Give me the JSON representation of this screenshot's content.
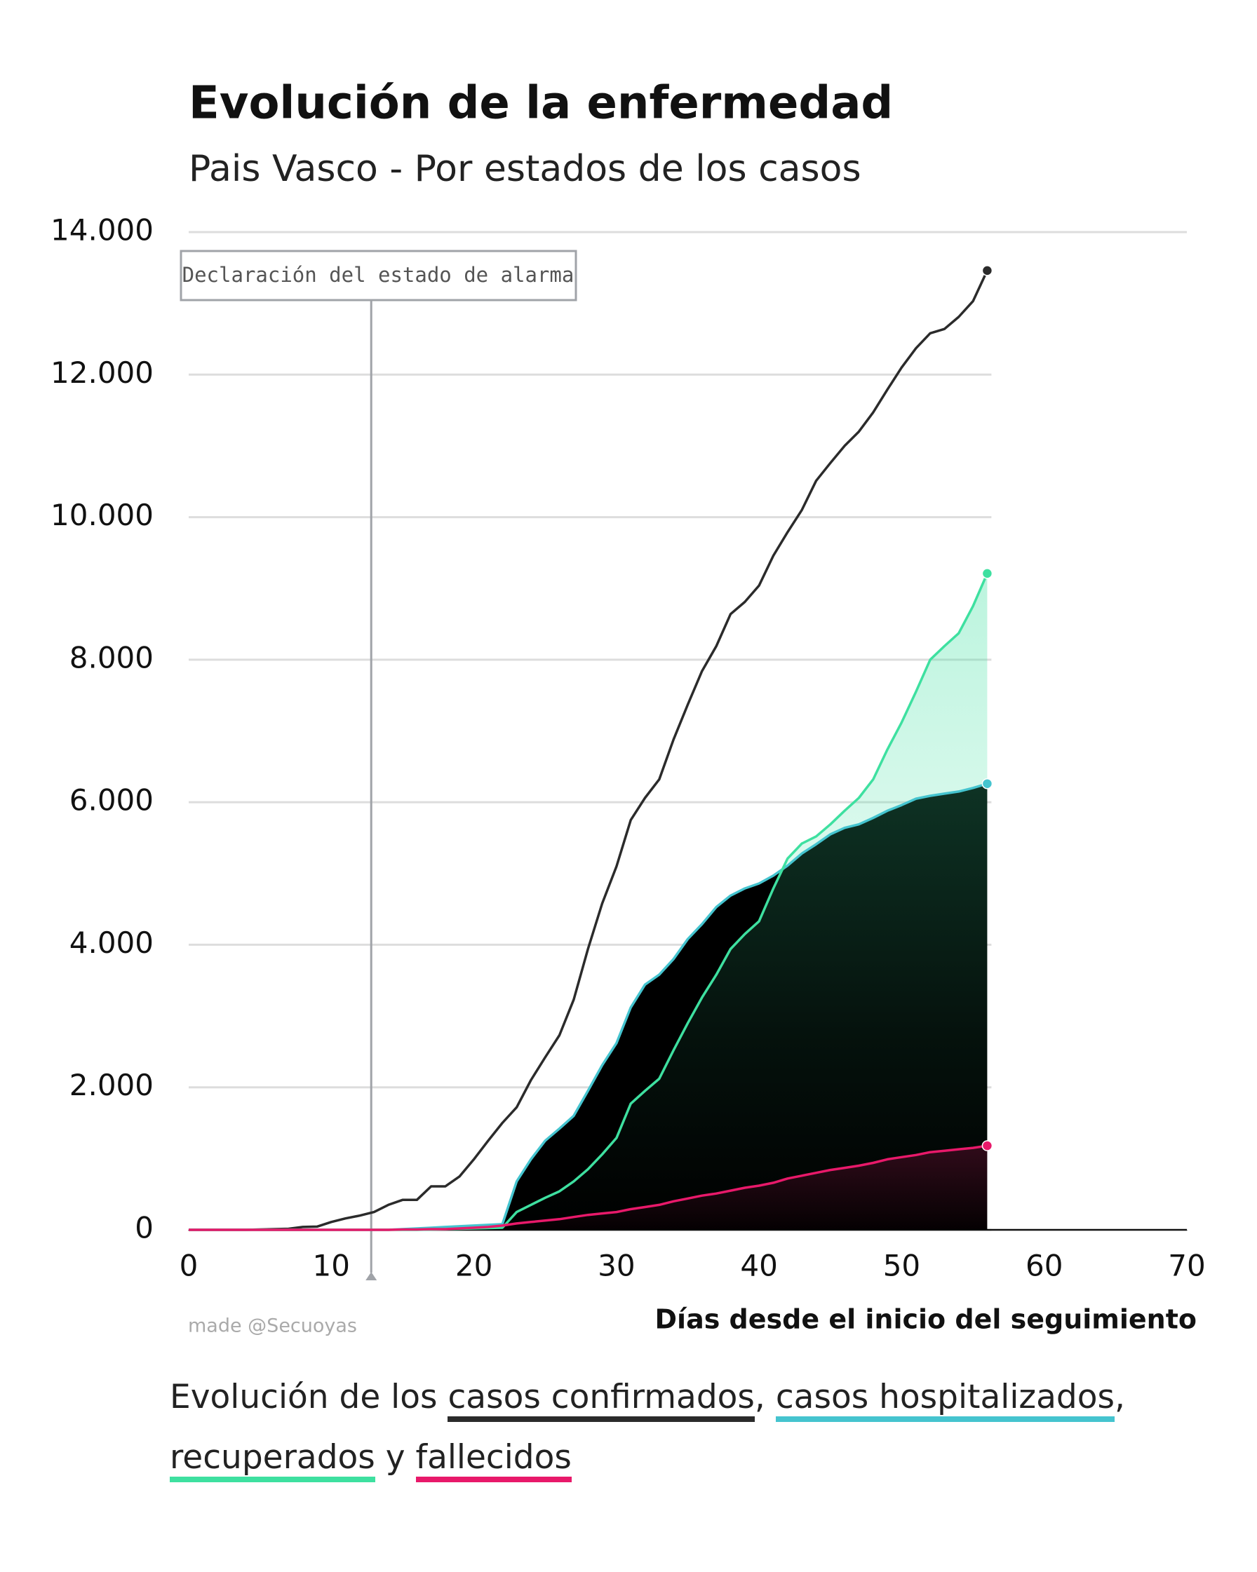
{
  "chart_data": {
    "type": "line",
    "title": "Evolución de la enfermedad",
    "subtitle": "Pais Vasco - Por estados de los casos",
    "xlabel": "Días desde el inicio del seguimiento",
    "credit": "made @Secuoyas",
    "annotation": {
      "text": "Declaración del estado de alarma",
      "x": 12.8
    },
    "caption": {
      "prefix": "Evolución de los",
      "separator": ",",
      "conjunction": "y"
    },
    "x": [
      0,
      1,
      2,
      3,
      4,
      5,
      6,
      7,
      8,
      9,
      10,
      11,
      12,
      13,
      14,
      15,
      16,
      17,
      18,
      19,
      20,
      21,
      22,
      23,
      24,
      25,
      26,
      27,
      28,
      29,
      30,
      31,
      32,
      33,
      34,
      35,
      36,
      37,
      38,
      39,
      40,
      41,
      42,
      43,
      44,
      45,
      46,
      47,
      48,
      49,
      50,
      51,
      52,
      53,
      54,
      55,
      56
    ],
    "series": [
      {
        "name": "casos confirmados",
        "color": "#2b2b2b",
        "area": false,
        "values": [
          0,
          0,
          0,
          0,
          0,
          5,
          10,
          15,
          40,
          45,
          110,
          160,
          200,
          250,
          350,
          420,
          420,
          610,
          610,
          750,
          990,
          1250,
          1500,
          1720,
          2100,
          2420,
          2730,
          3230,
          3940,
          4580,
          5100,
          5750,
          6060,
          6320,
          6880,
          7370,
          7840,
          8190,
          8640,
          8810,
          9040,
          9460,
          9790,
          10100,
          10510,
          10760,
          11000,
          11200,
          11470,
          11790,
          12100,
          12370,
          12580,
          12640,
          12810,
          13030,
          13460
        ]
      },
      {
        "name": "casos hospitalizados",
        "color": "#45c4cf",
        "area": true,
        "values": [
          0,
          0,
          0,
          0,
          0,
          0,
          0,
          0,
          0,
          0,
          0,
          0,
          0,
          0,
          0,
          10,
          20,
          30,
          40,
          50,
          60,
          70,
          80,
          680,
          990,
          1250,
          1420,
          1600,
          1950,
          2310,
          2620,
          3120,
          3440,
          3580,
          3800,
          4080,
          4290,
          4530,
          4690,
          4790,
          4860,
          4970,
          5110,
          5280,
          5410,
          5550,
          5640,
          5690,
          5780,
          5880,
          5960,
          6050,
          6090,
          6120,
          6150,
          6200,
          6260
        ]
      },
      {
        "name": "recuperados",
        "color": "#3ee0a0",
        "area": true,
        "values": [
          0,
          0,
          0,
          0,
          0,
          0,
          0,
          0,
          0,
          0,
          0,
          0,
          0,
          0,
          0,
          0,
          0,
          5,
          10,
          15,
          20,
          25,
          30,
          250,
          350,
          450,
          540,
          680,
          850,
          1060,
          1290,
          1770,
          1950,
          2120,
          2520,
          2900,
          3260,
          3580,
          3940,
          4150,
          4330,
          4790,
          5210,
          5420,
          5520,
          5690,
          5880,
          6060,
          6320,
          6740,
          7120,
          7550,
          8000,
          8190,
          8370,
          8750,
          9210
        ]
      },
      {
        "name": "fallecidos",
        "color": "#e8196a",
        "area": true,
        "values": [
          0,
          0,
          0,
          0,
          0,
          0,
          0,
          0,
          0,
          0,
          0,
          0,
          0,
          0,
          0,
          5,
          5,
          10,
          10,
          20,
          30,
          40,
          60,
          90,
          110,
          130,
          150,
          180,
          210,
          230,
          250,
          290,
          320,
          350,
          400,
          440,
          480,
          510,
          550,
          590,
          620,
          660,
          720,
          760,
          800,
          840,
          870,
          900,
          940,
          990,
          1020,
          1050,
          1090,
          1110,
          1130,
          1150,
          1180
        ]
      }
    ],
    "xlim": [
      0,
      70
    ],
    "xticks": [
      0,
      10,
      20,
      30,
      40,
      50,
      60,
      70
    ],
    "ylim": [
      0,
      14000
    ],
    "yticks": [
      0,
      {
        "value": 2000,
        "label": "2.000"
      },
      {
        "value": 4000,
        "label": "4.000"
      },
      {
        "value": 6000,
        "label": "6.000"
      },
      {
        "value": 8000,
        "label": "8.000"
      },
      {
        "value": 10000,
        "label": "10.000"
      },
      {
        "value": 12000,
        "label": "12.000"
      },
      {
        "value": 14000,
        "label": "14.000"
      }
    ],
    "grid": true
  }
}
